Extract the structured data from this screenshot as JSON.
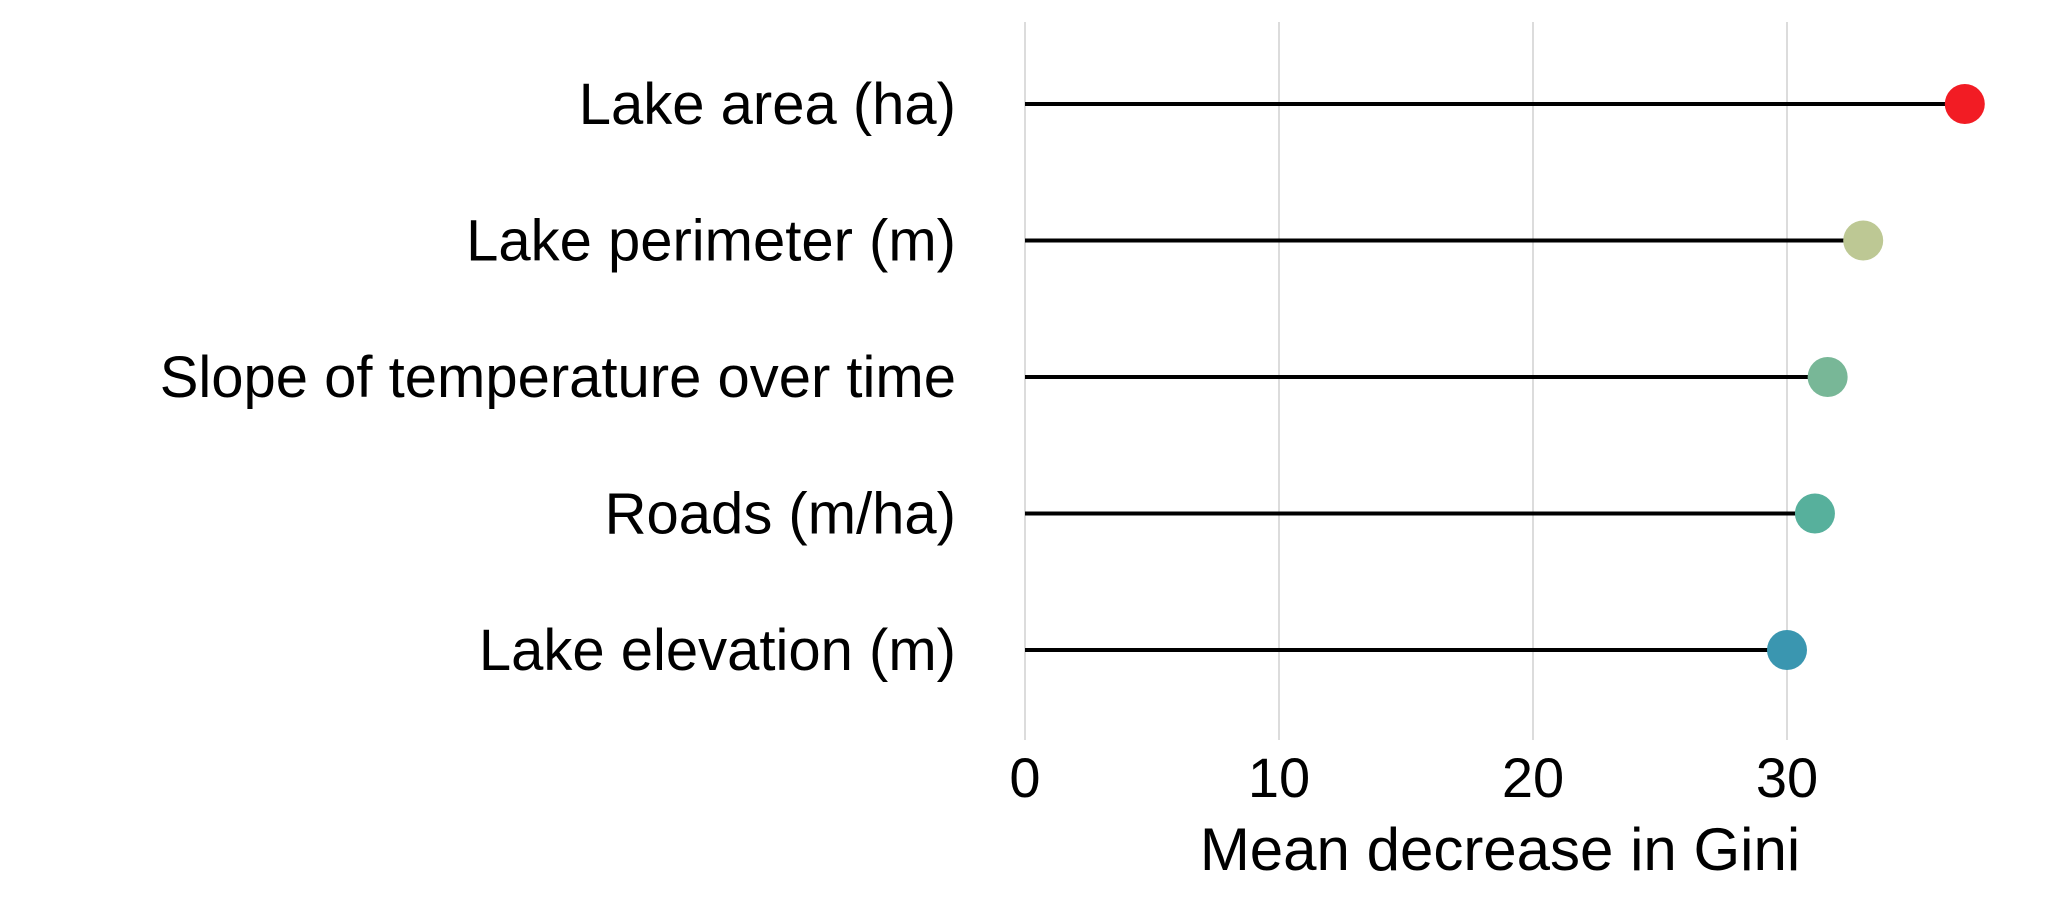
{
  "chart_data": {
    "type": "lollipop",
    "title": "",
    "xlabel": "Mean decrease in Gini",
    "ylabel": "",
    "xlim": [
      0,
      37.5
    ],
    "xticks": [
      0,
      10,
      20,
      30
    ],
    "xtick_labels": [
      "0",
      "10",
      "20",
      "30"
    ],
    "grid": "vertical",
    "legend": "none",
    "categories": [
      "Lake area (ha)",
      "Lake perimeter (m)",
      "Slope of temperature over time",
      "Roads (m/ha)",
      "Lake elevation (m)"
    ],
    "values": [
      37.0,
      33.0,
      31.6,
      31.1,
      30.0
    ],
    "colors": [
      "#f21c24",
      "#bdc894",
      "#78b797",
      "#57b09c",
      "#3a96b0"
    ]
  }
}
